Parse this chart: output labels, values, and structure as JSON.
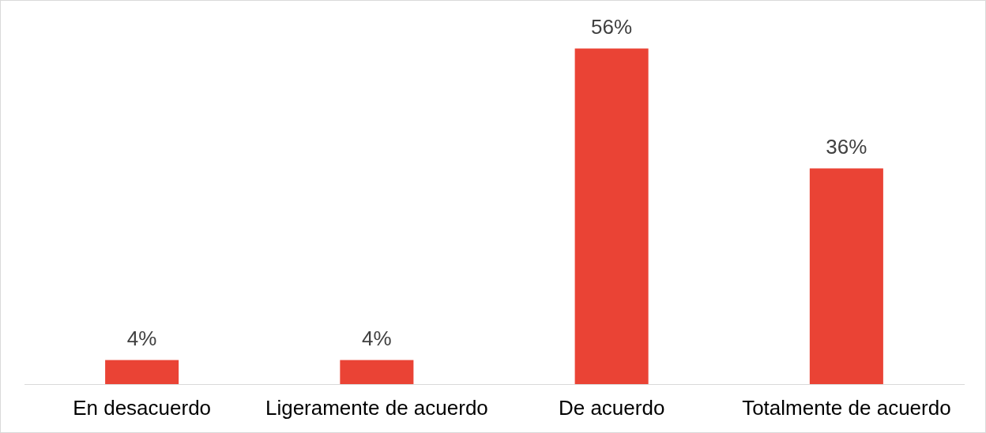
{
  "chart_data": {
    "type": "bar",
    "categories": [
      "En desacuerdo",
      "Ligeramente de acuerdo",
      "De acuerdo",
      "Totalmente de acuerdo"
    ],
    "values": [
      4,
      4,
      56,
      36
    ],
    "color": "#ea4335",
    "value_labels": [
      "4%",
      "4%",
      "56%",
      "36%"
    ],
    "tick_labels": "x"
  }
}
